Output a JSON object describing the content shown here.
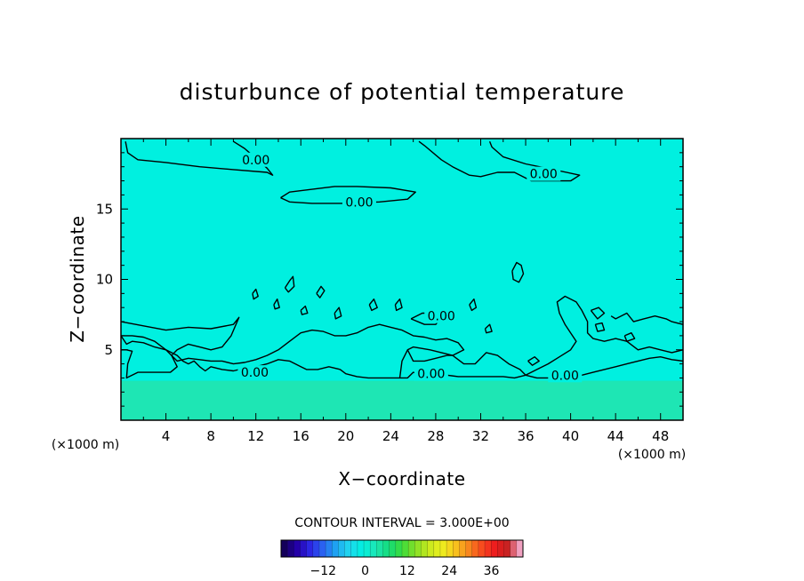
{
  "chart_data": {
    "type": "contour",
    "title": "disturbunce of potential temperature",
    "xlabel": "X−coordinate",
    "ylabel": "Z−coordinate",
    "x_unit": "(×1000 m)",
    "y_unit": "(×1000 m)",
    "xlim": [
      0,
      50
    ],
    "ylim": [
      0,
      20
    ],
    "xticks": [
      4,
      8,
      12,
      16,
      20,
      24,
      28,
      32,
      36,
      40,
      44,
      48
    ],
    "yticks": [
      5,
      10,
      15
    ],
    "fill_colors": {
      "background": "#00f0e0",
      "boundary_layer": "#1ee6b4"
    },
    "boundary_layer_top": 2.8,
    "contour_interval_text": "CONTOUR INTERVAL = 3.000E+00",
    "contour_labels": [
      {
        "x": 12,
        "y": 18.5,
        "text": "0.00"
      },
      {
        "x": 37.6,
        "y": 17.5,
        "text": "0.00"
      },
      {
        "x": 21.2,
        "y": 15.5,
        "text": "0.00"
      },
      {
        "x": 11.9,
        "y": 3.4,
        "text": "0.00"
      },
      {
        "x": 27.6,
        "y": 3.3,
        "text": "0.00"
      },
      {
        "x": 39.5,
        "y": 3.2,
        "text": "0.00"
      },
      {
        "x": 28.5,
        "y": 7.4,
        "text": "0.00"
      }
    ],
    "contours": [
      [
        [
          0.4,
          19.8
        ],
        [
          0.6,
          19.0
        ],
        [
          1.5,
          18.5
        ],
        [
          4.0,
          18.3
        ],
        [
          7.0,
          18.0
        ],
        [
          10.0,
          17.8
        ],
        [
          13.0,
          17.6
        ],
        [
          13.5,
          17.4
        ],
        [
          13.0,
          17.9
        ],
        [
          12.0,
          18.6
        ],
        [
          11.0,
          19.3
        ],
        [
          10.0,
          19.8
        ]
      ],
      [
        [
          26.5,
          19.8
        ],
        [
          27.0,
          19.5
        ],
        [
          28.5,
          18.5
        ],
        [
          29.5,
          18.0
        ],
        [
          31.0,
          17.4
        ],
        [
          32.0,
          17.3
        ],
        [
          33.5,
          17.6
        ],
        [
          35.0,
          17.6
        ],
        [
          36.0,
          17.2
        ],
        [
          36.5,
          17.0
        ],
        [
          40.0,
          17.0
        ],
        [
          40.8,
          17.4
        ],
        [
          38.5,
          17.8
        ],
        [
          36.0,
          18.2
        ],
        [
          34.0,
          18.7
        ],
        [
          33.0,
          19.4
        ],
        [
          32.8,
          19.8
        ]
      ],
      [
        [
          14.2,
          15.8
        ],
        [
          15.0,
          16.2
        ],
        [
          17.0,
          16.4
        ],
        [
          19.0,
          16.6
        ],
        [
          21.0,
          16.6
        ],
        [
          24.0,
          16.5
        ],
        [
          26.2,
          16.2
        ],
        [
          25.5,
          15.7
        ],
        [
          23.0,
          15.5
        ],
        [
          20.0,
          15.4
        ],
        [
          17.0,
          15.4
        ],
        [
          15.0,
          15.5
        ],
        [
          14.2,
          15.8
        ]
      ],
      [
        [
          0.0,
          7.0
        ],
        [
          2.0,
          6.7
        ],
        [
          4.0,
          6.4
        ],
        [
          6.0,
          6.6
        ],
        [
          8.0,
          6.5
        ],
        [
          10.0,
          6.8
        ],
        [
          10.5,
          7.3
        ],
        [
          9.8,
          6.0
        ],
        [
          9.0,
          5.2
        ],
        [
          8.0,
          5.0
        ],
        [
          7.0,
          5.2
        ],
        [
          6.0,
          5.4
        ],
        [
          5.0,
          5.0
        ],
        [
          4.5,
          4.6
        ],
        [
          5.0,
          4.2
        ],
        [
          6.0,
          4.4
        ],
        [
          7.0,
          4.3
        ],
        [
          8.0,
          4.2
        ],
        [
          9.0,
          4.2
        ],
        [
          10.0,
          4.0
        ],
        [
          11.0,
          4.1
        ],
        [
          12.0,
          4.3
        ],
        [
          13.0,
          4.6
        ],
        [
          14.0,
          5.0
        ],
        [
          15.0,
          5.6
        ],
        [
          16.0,
          6.2
        ],
        [
          17.0,
          6.4
        ],
        [
          18.0,
          6.3
        ],
        [
          19.0,
          6.0
        ],
        [
          20.0,
          6.0
        ],
        [
          21.0,
          6.2
        ],
        [
          22.0,
          6.6
        ],
        [
          23.0,
          6.8
        ],
        [
          24.0,
          6.6
        ],
        [
          25.0,
          6.4
        ],
        [
          26.0,
          6.0
        ],
        [
          27.0,
          5.9
        ],
        [
          28.0,
          5.7
        ],
        [
          29.0,
          5.8
        ],
        [
          30.0,
          5.5
        ],
        [
          30.5,
          5.0
        ],
        [
          29.5,
          4.6
        ],
        [
          28.5,
          4.8
        ],
        [
          27.5,
          5.0
        ],
        [
          26.0,
          5.2
        ],
        [
          25.5,
          5.0
        ],
        [
          25.0,
          4.2
        ],
        [
          24.8,
          3.0
        ],
        [
          24.0,
          3.0
        ],
        [
          23.0,
          3.0
        ],
        [
          22.0,
          3.0
        ],
        [
          21.0,
          3.1
        ],
        [
          20.0,
          3.3
        ],
        [
          19.5,
          3.6
        ],
        [
          18.5,
          3.8
        ],
        [
          17.5,
          3.6
        ],
        [
          16.5,
          3.6
        ],
        [
          16.0,
          3.8
        ],
        [
          15.0,
          4.2
        ],
        [
          14.0,
          4.3
        ],
        [
          13.0,
          4.0
        ],
        [
          12.0,
          3.8
        ],
        [
          11.0,
          3.7
        ],
        [
          10.0,
          3.5
        ],
        [
          9.0,
          3.6
        ],
        [
          8.0,
          3.8
        ],
        [
          7.5,
          3.5
        ],
        [
          7.0,
          3.8
        ],
        [
          6.5,
          4.2
        ],
        [
          6.0,
          4.0
        ],
        [
          5.5,
          4.2
        ],
        [
          5.0,
          4.6
        ],
        [
          4.5,
          4.8
        ],
        [
          4.0,
          5.0
        ],
        [
          3.0,
          5.6
        ],
        [
          2.0,
          5.9
        ],
        [
          1.0,
          6.0
        ],
        [
          0.0,
          6.0
        ]
      ],
      [
        [
          0.0,
          6.0
        ],
        [
          0.5,
          5.4
        ],
        [
          1.0,
          5.6
        ],
        [
          2.0,
          5.5
        ],
        [
          3.0,
          5.2
        ],
        [
          4.0,
          5.0
        ],
        [
          4.5,
          4.6
        ],
        [
          5.0,
          3.8
        ],
        [
          4.4,
          3.4
        ],
        [
          3.5,
          3.4
        ],
        [
          1.5,
          3.4
        ],
        [
          0.5,
          3.0
        ],
        [
          0.6,
          4.0
        ],
        [
          1.0,
          4.9
        ],
        [
          0.5,
          5.0
        ],
        [
          0.0,
          5.0
        ]
      ],
      [
        [
          25.5,
          5.0
        ],
        [
          26.0,
          4.2
        ],
        [
          27.0,
          4.2
        ],
        [
          28.0,
          4.4
        ],
        [
          29.0,
          4.6
        ],
        [
          29.5,
          4.6
        ],
        [
          30.5,
          4.0
        ],
        [
          31.5,
          4.0
        ],
        [
          32.5,
          4.8
        ],
        [
          33.5,
          4.6
        ],
        [
          34.5,
          4.0
        ],
        [
          35.5,
          3.6
        ],
        [
          36.0,
          3.2
        ],
        [
          35.0,
          3.0
        ],
        [
          34.0,
          3.1
        ],
        [
          33.0,
          3.1
        ],
        [
          32.0,
          3.1
        ],
        [
          31.0,
          3.1
        ],
        [
          30.0,
          3.1
        ],
        [
          29.0,
          3.2
        ],
        [
          28.0,
          3.3
        ],
        [
          27.0,
          3.2
        ],
        [
          26.0,
          3.4
        ],
        [
          25.5,
          3.0
        ],
        [
          24.8,
          3.0
        ]
      ],
      [
        [
          36.0,
          3.2
        ],
        [
          37.0,
          3.6
        ],
        [
          38.0,
          4.0
        ],
        [
          39.0,
          4.5
        ],
        [
          40.0,
          5.0
        ],
        [
          40.5,
          5.6
        ],
        [
          40.0,
          6.2
        ],
        [
          39.5,
          6.8
        ],
        [
          39.0,
          7.6
        ],
        [
          38.8,
          8.4
        ],
        [
          39.5,
          8.8
        ],
        [
          40.5,
          8.4
        ],
        [
          41.0,
          7.8
        ],
        [
          41.5,
          7.0
        ],
        [
          41.5,
          6.2
        ],
        [
          42.0,
          5.8
        ],
        [
          43.0,
          5.6
        ],
        [
          44.0,
          5.8
        ],
        [
          45.0,
          5.6
        ],
        [
          46.0,
          5.0
        ],
        [
          47.0,
          5.2
        ],
        [
          48.0,
          5.0
        ],
        [
          49.0,
          4.8
        ],
        [
          50.0,
          5.0
        ]
      ],
      [
        [
          36.0,
          3.2
        ],
        [
          37.0,
          3.0
        ],
        [
          38.0,
          3.0
        ],
        [
          39.0,
          3.0
        ],
        [
          40.0,
          3.1
        ],
        [
          41.0,
          3.2
        ],
        [
          42.0,
          3.4
        ],
        [
          43.0,
          3.6
        ],
        [
          44.0,
          3.8
        ],
        [
          45.0,
          4.0
        ],
        [
          46.0,
          4.2
        ],
        [
          47.0,
          4.4
        ],
        [
          48.0,
          4.5
        ],
        [
          49.0,
          4.3
        ],
        [
          50.0,
          4.2
        ]
      ],
      [
        [
          43.6,
          7.4
        ],
        [
          44.0,
          7.2
        ],
        [
          45.0,
          7.6
        ],
        [
          45.6,
          7.0
        ],
        [
          46.5,
          7.2
        ],
        [
          47.5,
          7.4
        ],
        [
          48.5,
          7.2
        ],
        [
          49.0,
          7.0
        ],
        [
          50.0,
          6.8
        ]
      ],
      [
        [
          34.8,
          10.6
        ],
        [
          35.2,
          11.2
        ],
        [
          35.6,
          11.0
        ],
        [
          35.8,
          10.4
        ],
        [
          35.4,
          9.8
        ],
        [
          34.9,
          10.0
        ],
        [
          34.8,
          10.6
        ]
      ],
      [
        [
          25.8,
          7.2
        ],
        [
          26.8,
          7.6
        ],
        [
          27.6,
          7.6
        ],
        [
          28.4,
          7.2
        ],
        [
          28.0,
          6.8
        ],
        [
          27.0,
          6.8
        ],
        [
          25.8,
          7.2
        ]
      ],
      [
        [
          41.8,
          7.8
        ],
        [
          42.5,
          8.0
        ],
        [
          43.0,
          7.6
        ],
        [
          42.4,
          7.2
        ],
        [
          41.8,
          7.8
        ]
      ],
      [
        [
          42.2,
          6.8
        ],
        [
          42.8,
          6.9
        ],
        [
          43.0,
          6.4
        ],
        [
          42.4,
          6.3
        ],
        [
          42.2,
          6.8
        ]
      ],
      [
        [
          36.2,
          4.2
        ],
        [
          36.8,
          4.5
        ],
        [
          37.2,
          4.2
        ],
        [
          36.6,
          3.9
        ],
        [
          36.2,
          4.2
        ]
      ],
      [
        [
          44.8,
          6.0
        ],
        [
          45.4,
          6.2
        ],
        [
          45.7,
          5.8
        ],
        [
          45.0,
          5.6
        ],
        [
          44.8,
          6.0
        ]
      ],
      [
        [
          14.6,
          9.4
        ],
        [
          15.0,
          9.9
        ],
        [
          15.3,
          10.2
        ],
        [
          15.4,
          9.5
        ],
        [
          14.9,
          9.1
        ],
        [
          14.6,
          9.4
        ]
      ],
      [
        [
          17.4,
          9.0
        ],
        [
          17.8,
          9.5
        ],
        [
          18.1,
          9.2
        ],
        [
          17.7,
          8.7
        ],
        [
          17.4,
          9.0
        ]
      ],
      [
        [
          16.0,
          7.8
        ],
        [
          16.4,
          8.1
        ],
        [
          16.6,
          7.6
        ],
        [
          16.1,
          7.5
        ],
        [
          16.0,
          7.8
        ]
      ],
      [
        [
          11.7,
          9.0
        ],
        [
          12.0,
          9.3
        ],
        [
          12.2,
          8.8
        ],
        [
          11.8,
          8.6
        ],
        [
          11.7,
          9.0
        ]
      ],
      [
        [
          22.1,
          8.2
        ],
        [
          22.5,
          8.6
        ],
        [
          22.8,
          8.0
        ],
        [
          22.3,
          7.8
        ],
        [
          22.1,
          8.2
        ]
      ],
      [
        [
          24.4,
          8.2
        ],
        [
          24.8,
          8.6
        ],
        [
          25.0,
          8.0
        ],
        [
          24.5,
          7.8
        ],
        [
          24.4,
          8.2
        ]
      ],
      [
        [
          19.0,
          7.6
        ],
        [
          19.4,
          8.0
        ],
        [
          19.6,
          7.4
        ],
        [
          19.1,
          7.2
        ],
        [
          19.0,
          7.6
        ]
      ],
      [
        [
          31.0,
          8.2
        ],
        [
          31.4,
          8.6
        ],
        [
          31.6,
          8.0
        ],
        [
          31.2,
          7.8
        ],
        [
          31.0,
          8.2
        ]
      ],
      [
        [
          32.4,
          6.5
        ],
        [
          32.8,
          6.8
        ],
        [
          33.0,
          6.3
        ],
        [
          32.5,
          6.2
        ],
        [
          32.4,
          6.5
        ]
      ],
      [
        [
          13.6,
          8.2
        ],
        [
          13.9,
          8.6
        ],
        [
          14.1,
          8.0
        ],
        [
          13.7,
          7.9
        ],
        [
          13.6,
          8.2
        ]
      ]
    ],
    "colorbar": {
      "ticks": [
        -12,
        0,
        12,
        24,
        36
      ],
      "tick_labels": [
        "−12",
        "0",
        "12",
        "24",
        "36"
      ],
      "range": [
        -24,
        45
      ],
      "colors": [
        "#14005a",
        "#2400aa",
        "#2c28e6",
        "#2a66f2",
        "#1ea8f2",
        "#20d8ee",
        "#00f0e0",
        "#1ee6b4",
        "#14dc7a",
        "#3cdc3c",
        "#84e028",
        "#c4e81e",
        "#ecf01e",
        "#f8c81e",
        "#f88c1e",
        "#f8501e",
        "#f01e1e",
        "#c81e1e",
        "#f0a0c0"
      ]
    }
  }
}
